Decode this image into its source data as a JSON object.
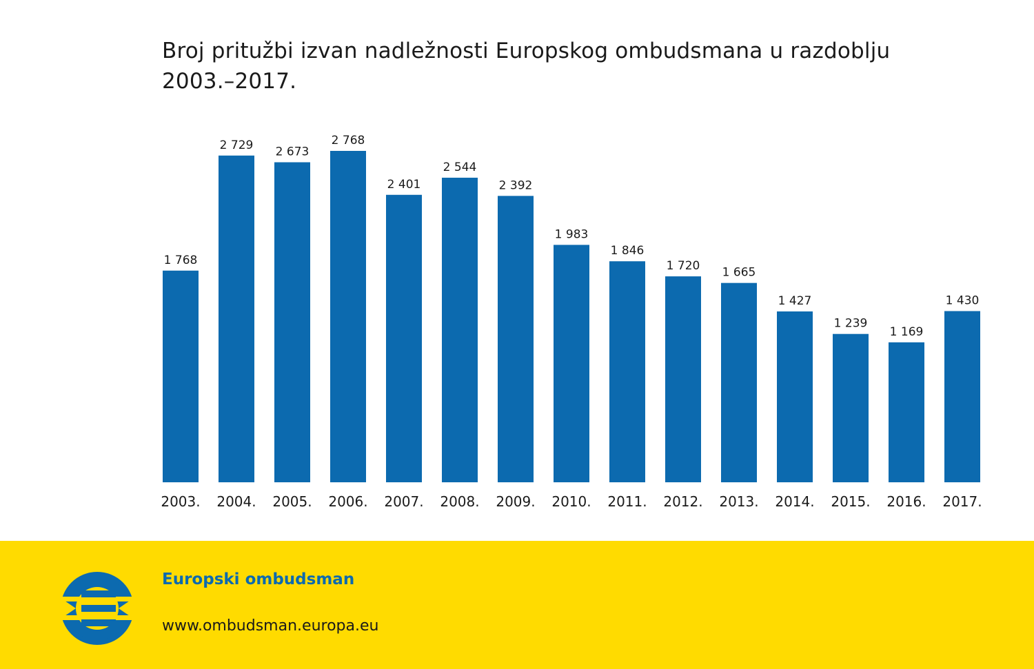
{
  "colors": {
    "bar": "#0c6aaf",
    "footer_bg": "#ffdb00",
    "brand_blue": "#0c6aaf",
    "text": "#1a1a1a"
  },
  "chart_data": {
    "type": "bar",
    "title": "Broj pritužbi izvan nadležnosti Europskog ombudsmana u razdoblju 2003.–2017.",
    "categories": [
      "2003.",
      "2004.",
      "2005.",
      "2006.",
      "2007.",
      "2008.",
      "2009.",
      "2010.",
      "2011.",
      "2012.",
      "2013.",
      "2014.",
      "2015.",
      "2016.",
      "2017."
    ],
    "values": [
      1768,
      2729,
      2673,
      2768,
      2401,
      2544,
      2392,
      1983,
      1846,
      1720,
      1665,
      1427,
      1239,
      1169,
      1430
    ],
    "value_labels": [
      "1 768",
      "2 729",
      "2 673",
      "2 768",
      "2 401",
      "2 544",
      "2 392",
      "1 983",
      "1 846",
      "1 720",
      "1 665",
      "1 427",
      "1 239",
      "1 169",
      "1 430"
    ],
    "xlabel": "",
    "ylabel": "",
    "ylim": [
      0,
      2768
    ],
    "grid": false,
    "legend": "none"
  },
  "footer": {
    "brand_name": "Europski ombudsman",
    "url": "www.ombudsman.europa.eu",
    "logo_icon": "european-ombudsman-logo-icon"
  }
}
